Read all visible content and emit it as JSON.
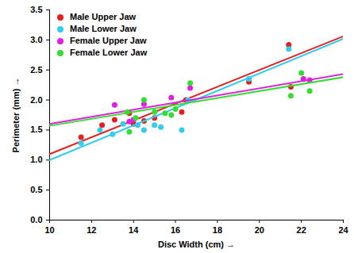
{
  "chart_data": {
    "type": "scatter",
    "marker": "circle",
    "x_label": "Disc Width (cm)",
    "y_label": "Perimeter (mm)",
    "xlim": [
      10,
      24
    ],
    "xticks": [
      10,
      12,
      14,
      16,
      18,
      20,
      22,
      24
    ],
    "ylim": [
      0,
      3.5
    ],
    "yticks": [
      {
        "value": 0,
        "label": "0.0"
      },
      0.5,
      {
        "value": 1,
        "label": "1.0"
      },
      1.5,
      {
        "value": 2,
        "label": "2.0"
      },
      2.5,
      {
        "value": 3,
        "label": "3.0"
      },
      3.5
    ],
    "grid": false,
    "legend": "top-left",
    "series": [
      {
        "name": "Male Upper Jaw",
        "color": "#e32020",
        "x": [
          11.5,
          12.5,
          13.1,
          13.8,
          14.0,
          14.5,
          15.0,
          16.3,
          16.5,
          19.5,
          21.4,
          21.5
        ],
        "values": [
          1.38,
          1.58,
          1.67,
          1.78,
          1.6,
          1.65,
          1.7,
          1.8,
          2.0,
          2.3,
          2.92,
          2.22
        ],
        "trend_x": [
          10,
          24
        ],
        "trend_values": [
          1.1,
          3.06
        ]
      },
      {
        "name": "Male Lower Jaw",
        "color": "#33ccee",
        "x": [
          11.5,
          12.4,
          13.0,
          13.5,
          14.2,
          14.5,
          15.0,
          15.3,
          16.3,
          16.6,
          19.5,
          21.4
        ],
        "values": [
          1.28,
          1.5,
          1.43,
          1.6,
          1.58,
          1.5,
          1.58,
          1.55,
          1.5,
          2.0,
          2.35,
          2.85
        ],
        "trend_x": [
          10,
          24
        ],
        "trend_values": [
          1.0,
          3.02
        ]
      },
      {
        "name": "Female Upper Jaw",
        "color": "#e020e0",
        "x": [
          13.1,
          13.8,
          14.0,
          14.5,
          15.8,
          16.7,
          22.1,
          22.4
        ],
        "values": [
          1.92,
          1.64,
          1.67,
          1.93,
          2.04,
          2.2,
          2.35,
          2.33
        ],
        "trend_x": [
          10,
          24
        ],
        "trend_values": [
          1.6,
          2.43
        ]
      },
      {
        "name": "Female Lower Jaw",
        "color": "#33dd33",
        "x": [
          13.7,
          13.8,
          14.1,
          14.5,
          15.0,
          15.5,
          15.8,
          16.0,
          16.7,
          21.5,
          22.0,
          22.4
        ],
        "values": [
          1.8,
          1.47,
          1.7,
          2.0,
          1.8,
          1.78,
          1.75,
          1.85,
          2.28,
          2.07,
          2.45,
          2.15
        ],
        "trend_x": [
          10,
          24
        ],
        "trend_values": [
          1.57,
          2.38
        ]
      }
    ]
  }
}
